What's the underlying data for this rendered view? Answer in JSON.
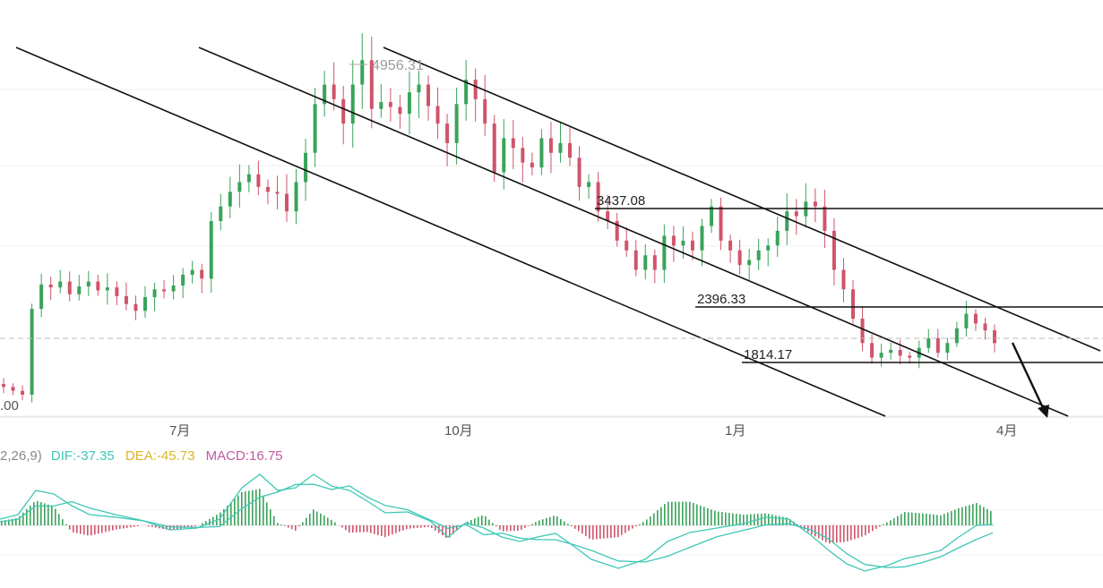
{
  "chart_data": {
    "type": "candlestick",
    "main_pane": {
      "y_tick_label": ".00",
      "x_tick_labels": [
        "7月",
        "10月",
        "1月",
        "4月"
      ],
      "peak_label": "4956.31",
      "y_range_approx": [
        1200,
        5100
      ],
      "current_price_dashed_line_approx": 1830,
      "horizontal_levels": [
        {
          "label": "3437.08",
          "value": 3437.08
        },
        {
          "label": "2396.33",
          "value": 2396.33
        },
        {
          "label": "1814.17",
          "value": 1814.17
        }
      ],
      "descending_channel_lines": 3,
      "projection_arrow": "down",
      "weekly_closes_approx": [
        1500,
        1460,
        1420,
        2300,
        2550,
        2520,
        2580,
        2450,
        2530,
        2580,
        2490,
        2520,
        2430,
        2350,
        2280,
        2420,
        2500,
        2480,
        2540,
        2650,
        2700,
        2610,
        3200,
        3350,
        3500,
        3600,
        3680,
        3550,
        3500,
        3480,
        3300,
        3600,
        3900,
        4400,
        4600,
        4450,
        4200,
        4600,
        4850,
        4350,
        4420,
        4370,
        4300,
        4520,
        4600,
        4380,
        4200,
        4000,
        4400,
        4650,
        4450,
        4200,
        3700,
        4050,
        3950,
        3800,
        3750,
        4050,
        3900,
        4000,
        3850,
        3550,
        3600,
        3300,
        3200,
        3000,
        2900,
        2700,
        2850,
        2700,
        3050,
        2950,
        3000,
        2900,
        3150,
        3350,
        3000,
        2900,
        2750,
        2800,
        2900,
        2950,
        3100,
        3300,
        3250,
        3400,
        3350,
        3100,
        2700,
        2500,
        2200,
        1950,
        1800,
        1850,
        1880,
        1820,
        1800,
        1900,
        2000,
        1850,
        1950,
        2100,
        2250,
        2150,
        2080,
        1950
      ]
    },
    "macd_pane": {
      "params_label": "2,26,9)",
      "dif_label": "DIF:-37.35",
      "dea_label": "DEA:-45.73",
      "macd_label": "MACD:16.75",
      "colors": {
        "dif": "#3fc7b5",
        "dea": "#d9b528",
        "macd": "#c25aa3",
        "up": "#3aa35a",
        "down": "#d0546a"
      }
    }
  }
}
